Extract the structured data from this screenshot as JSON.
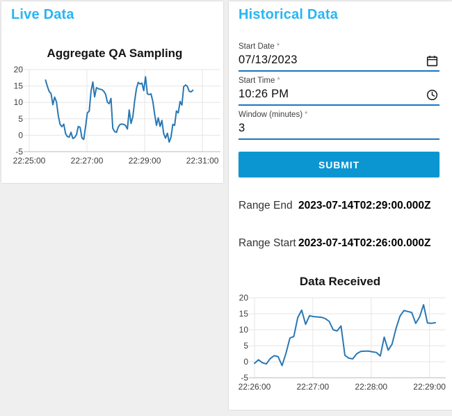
{
  "page": {
    "bg": "#efefef",
    "card_bg": "#ffffff"
  },
  "live_panel": {
    "title": "Live Data",
    "title_color": "#29b5f1"
  },
  "historical_panel": {
    "title": "Historical Data",
    "title_color": "#29b5f1",
    "underline_color": "#1a74c4",
    "submit_bg": "#0b96d2",
    "submit_label": "SUBMIT",
    "fields": {
      "start_date": {
        "label": "Start Date",
        "required_mark": "*",
        "value": "07/13/2023",
        "icon": "calendar-icon"
      },
      "start_time": {
        "label": "Start Time",
        "required_mark": "*",
        "value": "10:26 PM",
        "icon": "clock-icon"
      },
      "window": {
        "label": "Window (minutes)",
        "required_mark": "*",
        "value": "3"
      }
    },
    "range_end": {
      "label": "Range End",
      "value": "2023-07-14T02:29:00.000Z"
    },
    "range_start": {
      "label": "Range Start",
      "value": "2023-07-14T02:26:00.000Z"
    }
  },
  "chart_data": [
    {
      "type": "line",
      "title": "Aggregate QA Sampling",
      "line_color": "#2878b5",
      "x_tick_labels": [
        "22:25:00",
        "22:27:00",
        "22:29:00",
        "22:31:00"
      ],
      "x_tick_seconds": [
        0,
        120,
        240,
        360
      ],
      "x_axis_seconds": [
        0,
        396
      ],
      "y_ticks": [
        20,
        15,
        10,
        5,
        0,
        -5
      ],
      "ylim": [
        -5,
        20
      ],
      "grid": true,
      "legend": "none",
      "data_seconds": [
        34,
        340
      ],
      "values": [
        16.8,
        14.9,
        13.3,
        12.7,
        9.3,
        11.6,
        10.2,
        6.0,
        3.3,
        2.6,
        3.4,
        0.5,
        -0.4,
        -0.6,
        0.9,
        -1.0,
        -0.7,
        0.2,
        2.7,
        2.4,
        -0.8,
        -1.3,
        2.5,
        6.8,
        7.3,
        13.4,
        16.2,
        11.7,
        14.5,
        14.2,
        14.0,
        13.9,
        13.4,
        12.5,
        10.1,
        9.6,
        11.2,
        2.1,
        1.1,
        0.9,
        2.5,
        3.3,
        3.4,
        3.3,
        3.0,
        1.9,
        7.7,
        3.6,
        5.6,
        10.4,
        14.2,
        16.1,
        15.6,
        15.9,
        13.6,
        17.8,
        12.6,
        12.4,
        12.6,
        10.4,
        6.4,
        3.0,
        5.3,
        2.7,
        4.5,
        0.5,
        -0.9,
        0.6,
        -2.1,
        -0.6,
        3.3,
        3.0,
        7.4,
        6.8,
        10.3,
        9.2,
        14.8,
        15.3,
        14.9,
        13.4,
        13.2,
        13.7
      ]
    },
    {
      "type": "line",
      "title": "Data Received",
      "line_color": "#2878b5",
      "x_tick_labels": [
        "22:26:00",
        "22:27:00",
        "22:28:00",
        "22:29:00"
      ],
      "x_tick_seconds": [
        0,
        60,
        120,
        180
      ],
      "x_axis_seconds": [
        0,
        196
      ],
      "y_ticks": [
        20,
        15,
        10,
        5,
        0,
        -5
      ],
      "ylim": [
        -5,
        20
      ],
      "grid": true,
      "legend": "none",
      "data_seconds": [
        0,
        186
      ],
      "values": [
        -0.5,
        0.6,
        -0.3,
        -0.7,
        1.0,
        1.9,
        1.6,
        -1.2,
        2.6,
        7.4,
        7.9,
        13.8,
        16.1,
        11.7,
        14.4,
        14.1,
        14.0,
        13.9,
        13.5,
        12.6,
        10.0,
        9.6,
        11.2,
        2.0,
        1.1,
        0.9,
        2.5,
        3.2,
        3.3,
        3.3,
        3.1,
        2.9,
        1.8,
        7.7,
        3.6,
        5.5,
        10.4,
        14.2,
        16.0,
        15.7,
        15.4,
        12.0,
        14.0,
        17.8,
        12.1,
        12.0,
        12.2
      ]
    }
  ]
}
